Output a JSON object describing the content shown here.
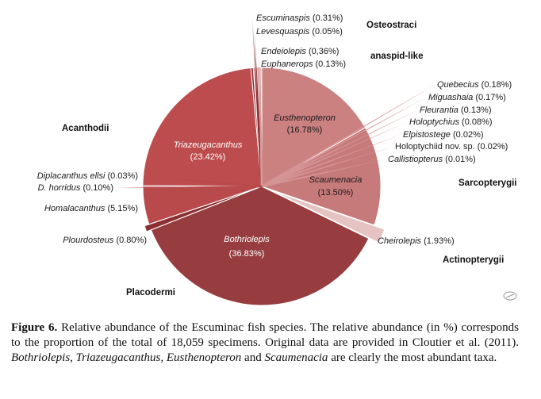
{
  "chart_data": {
    "type": "pie",
    "slices": [
      {
        "label": "Eusthenopteron",
        "pct": "(16.78%)",
        "value": 16.78,
        "color": "#cc8181",
        "group": "Sarcopterygii"
      },
      {
        "label": "Scaumenacia",
        "pct": "(13.50%)",
        "value": 13.5,
        "color": "#c77a7a",
        "group": "Sarcopterygii"
      },
      {
        "label": "Cheirolepis",
        "pct": "(1.93%)",
        "value": 1.93,
        "color": "#e5c3c3",
        "group": "Actinopterygii"
      },
      {
        "label": "Bothriolepis",
        "pct": "(36.83%)",
        "value": 36.83,
        "color": "#973c3f",
        "group": "Placodermi"
      },
      {
        "label": "Plourdosteus",
        "pct": "(0.80%)",
        "value": 0.8,
        "color": "#8b2e31",
        "group": "Placodermi"
      },
      {
        "label": "Homalacanthus",
        "pct": "(5.15%)",
        "value": 5.15,
        "color": "#b84a4c",
        "group": "Acanthodii"
      },
      {
        "label": "D. horridus",
        "pct": "(0.10%)",
        "value": 0.1,
        "color": "#b84a4c",
        "group": "Acanthodii"
      },
      {
        "label": "Diplacanthus ellsi",
        "pct": "(0.03%)",
        "value": 0.03,
        "color": "#b84a4c",
        "group": "Acanthodii"
      },
      {
        "label": "Triazeugacanthus",
        "pct": "(23.42%)",
        "value": 23.42,
        "color": "#bd4c4e",
        "group": "Acanthodii"
      },
      {
        "label": "Escuminaspis",
        "pct": "(0.31%)",
        "value": 0.31,
        "color": "#8e2d31",
        "group": "Osteostraci"
      },
      {
        "label": "Levesquaspis",
        "pct": "(0.05%)",
        "value": 0.05,
        "color": "#8e2d31",
        "group": "Osteostraci"
      },
      {
        "label": "Endeiolepis",
        "pct": "(0,36%)",
        "value": 0.36,
        "color": "#d69b9b",
        "group": "anaspid-like"
      },
      {
        "label": "Euphanerops",
        "pct": "(0.13%)",
        "value": 0.13,
        "color": "#d69b9b",
        "group": "anaspid-like"
      },
      {
        "label": "Quebecius",
        "pct": "(0.18%)",
        "value": 0.18,
        "color": "#d49494",
        "group": "Sarcopterygii"
      },
      {
        "label": "Miguashaia",
        "pct": "(0.17%)",
        "value": 0.17,
        "color": "#d49494",
        "group": "Sarcopterygii"
      },
      {
        "label": "Fleurantia",
        "pct": "(0.13%)",
        "value": 0.13,
        "color": "#d49494",
        "group": "Sarcopterygii"
      },
      {
        "label": "Holoptychius",
        "pct": "(0.08%)",
        "value": 0.08,
        "color": "#d49494",
        "group": "Sarcopterygii"
      },
      {
        "label": "Elpistostege",
        "pct": "(0.02%)",
        "value": 0.02,
        "color": "#d49494",
        "group": "Sarcopterygii"
      },
      {
        "label": "Holoptychiid nov. sp.",
        "pct": "(0.02%)",
        "value": 0.02,
        "color": "#d49494",
        "group": "Sarcopterygii"
      },
      {
        "label": "Callistiopterus",
        "pct": "(0.01%)",
        "value": 0.01,
        "color": "#d49494",
        "group": "Sarcopterygii"
      }
    ],
    "groups": [
      "Osteostraci",
      "anaspid-like",
      "Acanthodii",
      "Sarcopterygii",
      "Actinopterygii",
      "Placodermi"
    ]
  },
  "caption": {
    "figure_label": "Figure 6.",
    "text_1": " Relative abundance of the Escuminac fish species. The relative abundance (in %) corresponds to the proportion of the total of 18,059 specimens. Original data are provided in Cloutier et al. (2011). ",
    "italic_taxa": "Bothriolepis, Triazeugacanthus, Eusthenopteron",
    "text_2": " and ",
    "italic_last": "Scaumenacia",
    "text_3": " are clearly the most abundant taxa."
  }
}
